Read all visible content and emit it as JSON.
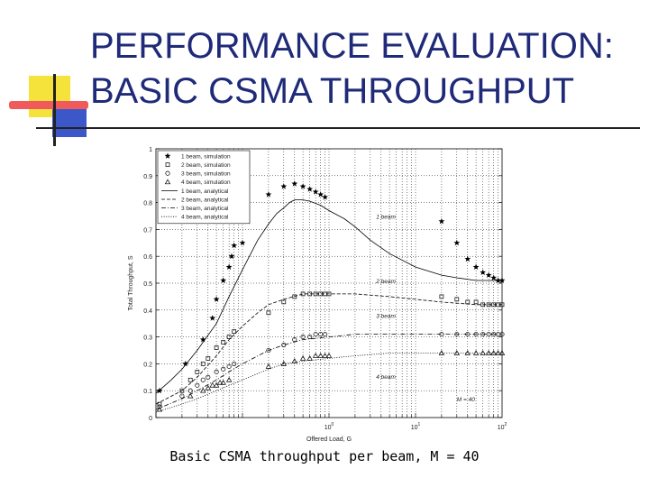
{
  "slide": {
    "title": "PERFORMANCE EVALUATION:\nBASIC CSMA THROUGHPUT",
    "caption": "Basic CSMA throughput per beam, M = 40",
    "colors": {
      "title": "#1f2a78",
      "yellow": "#f5e33c",
      "blue": "#3b57c8",
      "red": "#f05a5a"
    }
  },
  "chart_data": {
    "type": "line",
    "xscale": "log",
    "xlim": [
      0.01,
      100
    ],
    "ylim": [
      0,
      1
    ],
    "xlabel": "Offered Load, G",
    "ylabel": "Total Throughput, S",
    "grid": true,
    "legend_position": "top-left",
    "x_ticks": [
      {
        "value": 1,
        "base": "10",
        "exp": "0"
      },
      {
        "value": 10,
        "base": "10",
        "exp": "1"
      },
      {
        "value": 100,
        "base": "10",
        "exp": "2"
      }
    ],
    "y_ticks": [
      "0",
      "0.1",
      "0.2",
      "0.3",
      "0.4",
      "0.5",
      "0.6",
      "0.7",
      "0.8",
      "0.9",
      "1"
    ],
    "legend": [
      {
        "label": "1 beam, simulation",
        "marker": "star"
      },
      {
        "label": "2 beam, simulation",
        "marker": "square"
      },
      {
        "label": "3 beam, simulation",
        "marker": "circle"
      },
      {
        "label": "4 beam, simulation",
        "marker": "triangle"
      },
      {
        "label": "1 beam, analytical",
        "line": "solid"
      },
      {
        "label": "2 beam, analytical",
        "line": "dashed"
      },
      {
        "label": "3 beam, analytical",
        "line": "dashdot"
      },
      {
        "label": "4 beam, analytical",
        "line": "dotted"
      }
    ],
    "annotations": [
      {
        "text": "1 beam",
        "x": 3.5,
        "y": 0.74
      },
      {
        "text": "2 beam",
        "x": 3.5,
        "y": 0.5
      },
      {
        "text": "3 beam",
        "x": 3.5,
        "y": 0.37
      },
      {
        "text": "4 beam",
        "x": 3.5,
        "y": 0.145
      },
      {
        "text": "M = 40",
        "x": 30,
        "y": 0.06
      }
    ],
    "series": [
      {
        "marker": "star",
        "x": [
          0.011,
          0.022,
          0.035,
          0.045,
          0.05,
          0.06,
          0.07,
          0.075,
          0.08,
          0.1,
          0.2,
          0.3,
          0.4,
          0.5,
          0.6,
          0.7,
          0.8,
          0.9,
          20,
          30,
          40,
          50,
          60,
          70,
          80,
          90,
          100
        ],
        "y": [
          0.1,
          0.2,
          0.29,
          0.37,
          0.44,
          0.51,
          0.56,
          0.6,
          0.64,
          0.65,
          0.83,
          0.86,
          0.87,
          0.86,
          0.85,
          0.84,
          0.83,
          0.82,
          0.73,
          0.65,
          0.59,
          0.56,
          0.54,
          0.53,
          0.52,
          0.51,
          0.51
        ]
      },
      {
        "marker": "square",
        "x": [
          0.011,
          0.02,
          0.025,
          0.03,
          0.035,
          0.04,
          0.05,
          0.06,
          0.07,
          0.08,
          0.2,
          0.3,
          0.4,
          0.5,
          0.6,
          0.7,
          0.8,
          0.9,
          1,
          20,
          30,
          40,
          50,
          60,
          70,
          80,
          90,
          100
        ],
        "y": [
          0.05,
          0.1,
          0.14,
          0.17,
          0.2,
          0.22,
          0.26,
          0.28,
          0.3,
          0.32,
          0.39,
          0.43,
          0.45,
          0.46,
          0.46,
          0.46,
          0.46,
          0.46,
          0.46,
          0.45,
          0.44,
          0.43,
          0.43,
          0.42,
          0.42,
          0.42,
          0.42,
          0.42
        ]
      },
      {
        "marker": "circle",
        "x": [
          0.011,
          0.02,
          0.025,
          0.03,
          0.035,
          0.04,
          0.05,
          0.06,
          0.07,
          0.08,
          0.2,
          0.3,
          0.4,
          0.5,
          0.6,
          0.7,
          0.8,
          0.9,
          20,
          30,
          40,
          50,
          60,
          70,
          80,
          90,
          100
        ],
        "y": [
          0.04,
          0.08,
          0.1,
          0.12,
          0.14,
          0.15,
          0.17,
          0.18,
          0.19,
          0.2,
          0.25,
          0.27,
          0.29,
          0.3,
          0.3,
          0.31,
          0.31,
          0.31,
          0.31,
          0.31,
          0.31,
          0.31,
          0.31,
          0.31,
          0.31,
          0.31,
          0.31
        ]
      },
      {
        "marker": "triangle",
        "x": [
          0.011,
          0.025,
          0.035,
          0.04,
          0.045,
          0.05,
          0.055,
          0.06,
          0.07,
          0.2,
          0.3,
          0.4,
          0.5,
          0.6,
          0.7,
          0.8,
          0.9,
          1,
          20,
          30,
          40,
          50,
          60,
          70,
          80,
          90,
          100
        ],
        "y": [
          0.03,
          0.08,
          0.1,
          0.11,
          0.12,
          0.12,
          0.13,
          0.13,
          0.14,
          0.19,
          0.2,
          0.21,
          0.22,
          0.22,
          0.23,
          0.23,
          0.23,
          0.23,
          0.24,
          0.24,
          0.24,
          0.24,
          0.24,
          0.24,
          0.24,
          0.24,
          0.24
        ]
      },
      {
        "line": "solid",
        "x": [
          0.01,
          0.015,
          0.02,
          0.03,
          0.05,
          0.07,
          0.1,
          0.15,
          0.2,
          0.25,
          0.3,
          0.35,
          0.4,
          0.5,
          0.6,
          0.8,
          1,
          1.5,
          2,
          3,
          5,
          10,
          20,
          30,
          50,
          100
        ],
        "y": [
          0.09,
          0.14,
          0.18,
          0.25,
          0.35,
          0.45,
          0.55,
          0.66,
          0.72,
          0.76,
          0.78,
          0.8,
          0.81,
          0.81,
          0.805,
          0.79,
          0.77,
          0.74,
          0.71,
          0.66,
          0.61,
          0.56,
          0.53,
          0.52,
          0.51,
          0.51
        ]
      },
      {
        "line": "dashed",
        "x": [
          0.01,
          0.02,
          0.03,
          0.05,
          0.07,
          0.1,
          0.15,
          0.2,
          0.3,
          0.5,
          1,
          2,
          5,
          10,
          20,
          50,
          100
        ],
        "y": [
          0.05,
          0.1,
          0.15,
          0.23,
          0.29,
          0.34,
          0.39,
          0.42,
          0.44,
          0.46,
          0.46,
          0.46,
          0.45,
          0.44,
          0.43,
          0.42,
          0.42
        ]
      },
      {
        "line": "dashdot",
        "x": [
          0.01,
          0.02,
          0.03,
          0.05,
          0.07,
          0.1,
          0.2,
          0.3,
          0.5,
          1,
          2,
          5,
          10,
          20,
          50,
          100
        ],
        "y": [
          0.03,
          0.07,
          0.1,
          0.14,
          0.17,
          0.2,
          0.25,
          0.27,
          0.29,
          0.3,
          0.31,
          0.31,
          0.31,
          0.31,
          0.31,
          0.31
        ]
      },
      {
        "line": "dotted",
        "x": [
          0.01,
          0.02,
          0.03,
          0.05,
          0.07,
          0.1,
          0.2,
          0.3,
          0.5,
          1,
          2,
          5,
          10,
          20,
          50,
          100
        ],
        "y": [
          0.02,
          0.05,
          0.07,
          0.1,
          0.12,
          0.14,
          0.18,
          0.2,
          0.21,
          0.22,
          0.23,
          0.24,
          0.24,
          0.24,
          0.24,
          0.24
        ]
      }
    ]
  }
}
